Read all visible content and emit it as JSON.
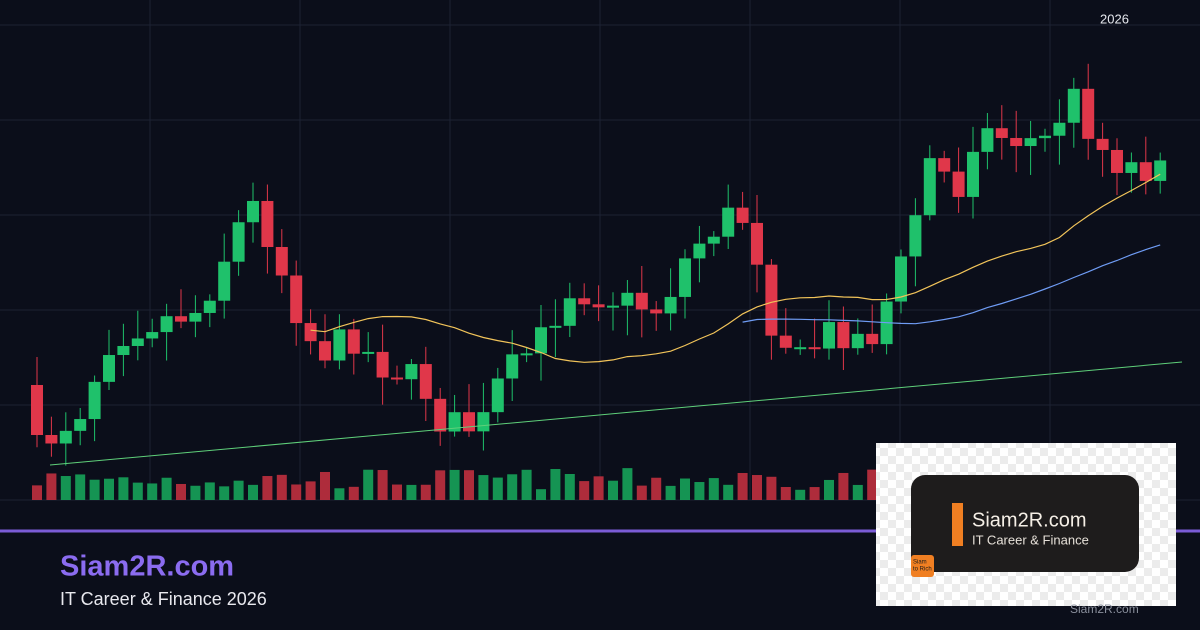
{
  "header": {
    "year": "2026"
  },
  "brand": {
    "title": "Siam2R.com",
    "subtitle": "IT Career & Finance 2026"
  },
  "logo": {
    "title": "Siam2R.com",
    "subtitle": "IT Career & Finance",
    "icon": [
      "Siam",
      "to Rich"
    ]
  },
  "footer": "Siam2R.com"
}
